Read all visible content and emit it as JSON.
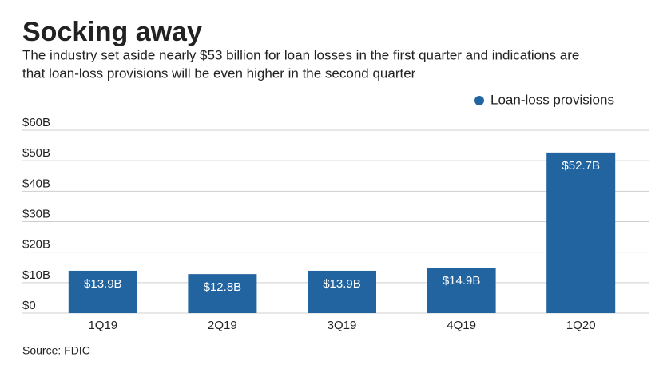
{
  "chart_data": {
    "type": "bar",
    "title": "Socking away",
    "subtitle": [
      "The industry set aside nearly $53 billion for loan losses in the first quarter and indications are",
      "that loan-loss provisions will be even higher in the second quarter"
    ],
    "source": "Source: FDIC",
    "categories": [
      "1Q19",
      "2Q19",
      "3Q19",
      "4Q19",
      "1Q20"
    ],
    "series": [
      {
        "name": "Loan-loss provisions",
        "color": "#2264a0",
        "values": [
          13.9,
          12.8,
          13.9,
          14.9,
          52.7
        ],
        "value_labels": [
          "$13.9B",
          "$12.8B",
          "$13.9B",
          "$14.9B",
          "$52.7B"
        ]
      }
    ],
    "ylim": [
      0,
      60
    ],
    "yticks": [
      {
        "value": 0,
        "label": "$0"
      },
      {
        "value": 10,
        "label": "$10B"
      },
      {
        "value": 20,
        "label": "$20B"
      },
      {
        "value": 30,
        "label": "$30B"
      },
      {
        "value": 40,
        "label": "$40B"
      },
      {
        "value": 50,
        "label": "$50B"
      },
      {
        "value": 60,
        "label": "$60B"
      }
    ],
    "grid": true,
    "legend": "top-right"
  }
}
